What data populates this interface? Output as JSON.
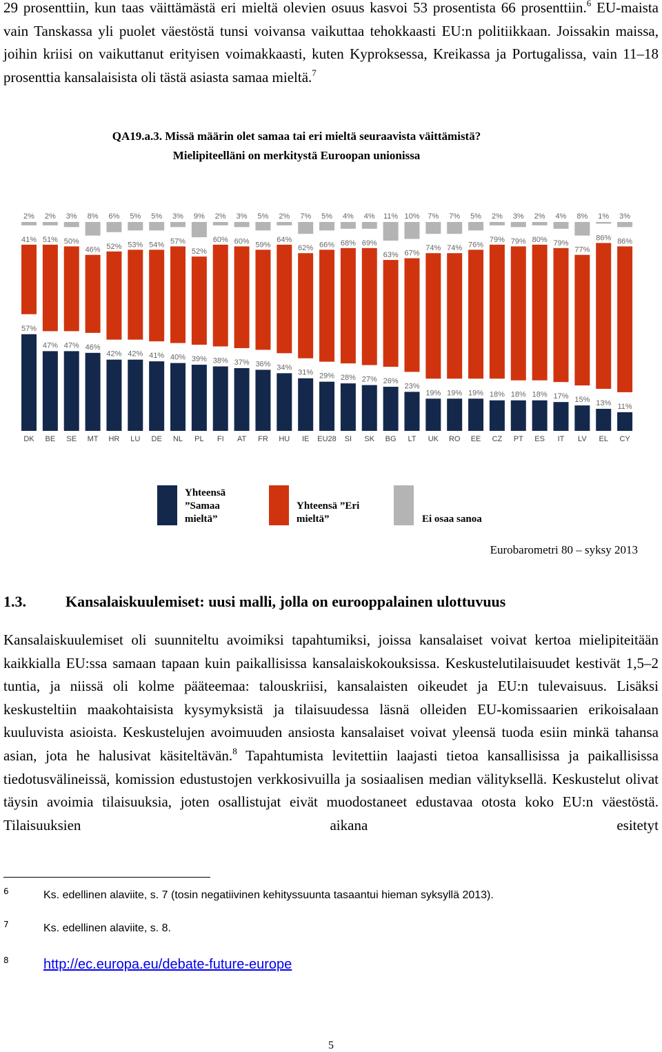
{
  "intro": {
    "parts": [
      "29 prosenttiin, kun taas väittämästä eri mieltä olevien osuus kasvoi 53 prosentista 66 prosenttiin.",
      "6",
      " EU-maista vain Tanskassa yli puolet väestöstä tunsi voivansa vaikuttaa tehokkaasti EU:n politiikkaan. Joissakin maissa, joihin kriisi on vaikuttanut erityisen voimakkaasti, kuten Kyproksessa, Kreikassa ja Portugalissa, vain 11–18 prosenttia kansalaisista oli tästä asiasta samaa mieltä.",
      "7"
    ]
  },
  "chart_data": {
    "type": "bar",
    "title": "QA19.a.3. Missä määrin olet samaa tai eri mieltä seuraavista väittämistä?",
    "subtitle": "Mielipiteelläni on merkitystä Euroopan unionissa",
    "categories": [
      "DK",
      "BE",
      "SE",
      "MT",
      "HR",
      "LU",
      "DE",
      "NL",
      "PL",
      "FI",
      "AT",
      "FR",
      "HU",
      "IE",
      "EU28",
      "SI",
      "SK",
      "BG",
      "LT",
      "UK",
      "RO",
      "EE",
      "CZ",
      "PT",
      "ES",
      "IT",
      "LV",
      "EL",
      "CY"
    ],
    "series": [
      {
        "name": "Yhteensä ”Samaa mieltä”",
        "color": "#14284b",
        "values": [
          57,
          47,
          47,
          46,
          42,
          42,
          41,
          40,
          39,
          38,
          37,
          36,
          34,
          31,
          29,
          28,
          27,
          26,
          23,
          19,
          19,
          19,
          18,
          18,
          18,
          17,
          15,
          13,
          11
        ],
        "value_labels": [
          "57%",
          "47%",
          "47%",
          "46%",
          "42%",
          "42%",
          "41%",
          "40%",
          "39%",
          "38%",
          "37%",
          "36%",
          "34%",
          "31%",
          "29%",
          "28%",
          "27%",
          "26%",
          "23%",
          "19%",
          "19%",
          "19%",
          "18%",
          "18%",
          "18%",
          "17%",
          "15%",
          "13%",
          "11%"
        ]
      },
      {
        "name": "Yhteensä ”Eri mieltä”",
        "color": "#d0340f",
        "values": [
          41,
          51,
          50,
          46,
          52,
          53,
          54,
          57,
          52,
          60,
          60,
          59,
          64,
          62,
          66,
          68,
          69,
          63,
          67,
          74,
          74,
          76,
          79,
          79,
          80,
          79,
          77,
          86,
          86
        ],
        "value_labels": [
          "41%",
          "51%",
          "50%",
          "46%",
          "52%",
          "53%",
          "54%",
          "57%",
          "52%",
          "60%",
          "60%",
          "59%",
          "64%",
          "62%",
          "66%",
          "68%",
          "69%",
          "63%",
          "67%",
          "74%",
          "74%",
          "76%",
          "79%",
          "79%",
          "80%",
          "79%",
          "77%",
          "86%",
          "86%"
        ]
      },
      {
        "name": "Ei osaa sanoa",
        "color": "#b4b4b4",
        "values": [
          2,
          2,
          3,
          8,
          6,
          5,
          5,
          3,
          9,
          2,
          3,
          5,
          2,
          7,
          5,
          4,
          4,
          11,
          10,
          7,
          7,
          5,
          2,
          3,
          2,
          4,
          8,
          1,
          3
        ],
        "value_labels": [
          "2%",
          "2%",
          "3%",
          "8%",
          "6%",
          "5%",
          "5%",
          "3%",
          "9%",
          "2%",
          "3%",
          "5%",
          "2%",
          "7%",
          "5%",
          "4%",
          "4%",
          "11%",
          "10%",
          "7%",
          "7%",
          "5%",
          "2%",
          "3%",
          "2%",
          "4%",
          "8%",
          "1%",
          "3%"
        ]
      }
    ],
    "source": "Eurobarometri 80 – syksy 2013"
  },
  "section": {
    "number": "1.3.",
    "title": "Kansalaiskuulemiset: uusi malli, jolla on eurooppalainen ulottuvuus"
  },
  "body": {
    "parts": [
      "Kansalaiskuulemiset oli suunniteltu avoimiksi tapahtumiksi, joissa kansalaiset voivat kertoa mielipiteitään kaikkialla EU:ssa samaan tapaan kuin paikallisissa kansalaiskokouksissa. Keskustelutilaisuudet kestivät 1,5–2 tuntia, ja niissä oli kolme pääteemaa: talouskriisi, kansalaisten oikeudet ja EU:n tulevaisuus. Lisäksi keskusteltiin maakohtaisista kysymyksistä ja tilaisuudessa läsnä olleiden EU-komissaarien erikoisalaan kuuluvista asioista. Keskustelujen avoimuuden ansiosta kansalaiset voivat yleensä tuoda esiin minkä tahansa asian, jota he halusivat käsiteltävän.",
      "8",
      " Tapahtumista levitettiin laajasti tietoa kansallisissa ja paikallisissa tiedotusvälineissä, komission edustustojen verkkosivuilla ja sosiaalisen median välityksellä. Keskustelut olivat täysin avoimia tilaisuuksia, joten osallistujat eivät muodostaneet edustavaa otosta koko EU:n väestöstä. Tilaisuuksien aikana esitetyt"
    ]
  },
  "footnotes": [
    {
      "number": "6",
      "text": "Ks. edellinen alaviite, s. 7 (tosin negatiivinen kehityssuunta tasaantui hieman syksyllä 2013)."
    },
    {
      "number": "7",
      "text": "Ks. edellinen alaviite, s. 8."
    },
    {
      "number": "8",
      "text": "http://ec.europa.eu/debate-future-europe"
    }
  ],
  "page_number": "5"
}
